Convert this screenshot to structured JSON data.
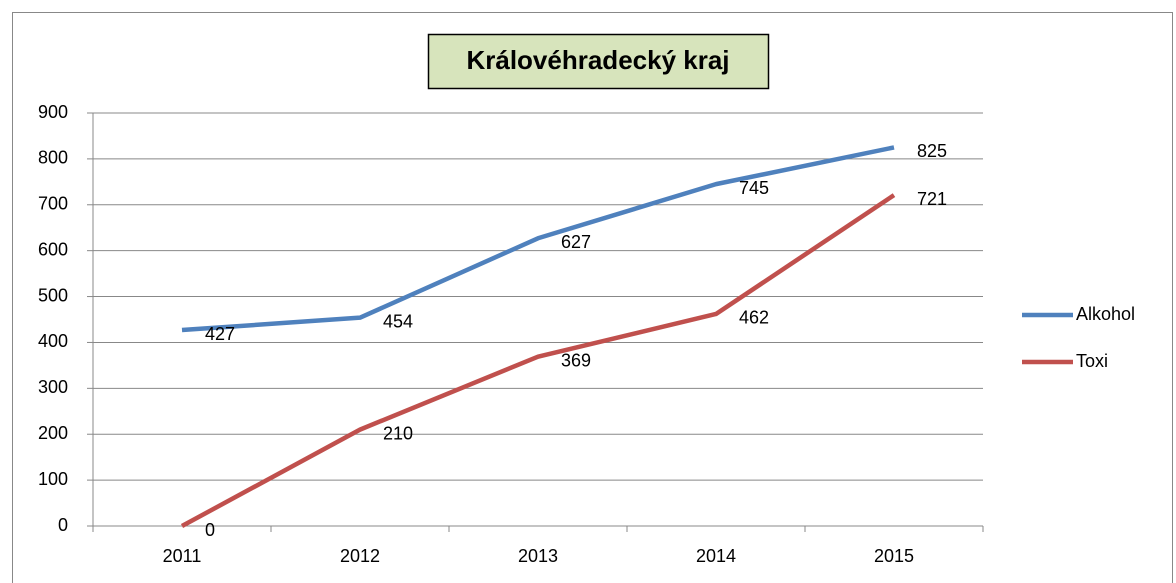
{
  "chart_data": {
    "type": "line",
    "title": "Královéhradecký kraj",
    "categories": [
      "2011",
      "2012",
      "2013",
      "2014",
      "2015"
    ],
    "series": [
      {
        "name": "Alkohol",
        "color": "#4f81bd",
        "values": [
          427,
          454,
          627,
          745,
          825
        ]
      },
      {
        "name": "Toxi",
        "color": "#c0504d",
        "values": [
          0,
          210,
          369,
          462,
          721
        ]
      }
    ],
    "ylim": [
      0,
      900
    ],
    "yticks": [
      0,
      100,
      200,
      300,
      400,
      500,
      600,
      700,
      800,
      900
    ],
    "grid": true,
    "legend": "right",
    "data_labels": true
  }
}
